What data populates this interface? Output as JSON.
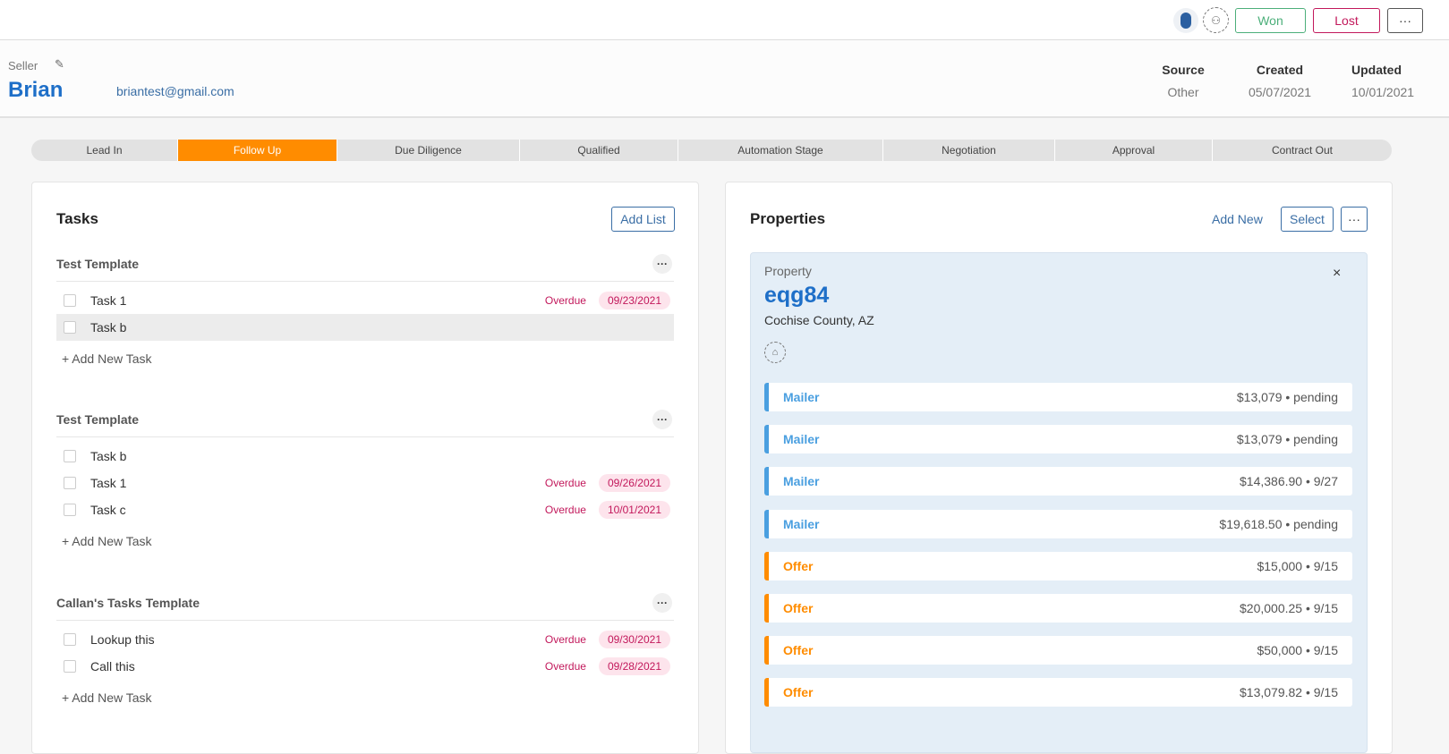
{
  "header": {
    "won": "Won",
    "lost": "Lost",
    "more": "···"
  },
  "seller": {
    "label": "Seller",
    "name": "Brian",
    "email": "briantest@gmail.com",
    "meta": [
      {
        "label": "Source",
        "value": "Other"
      },
      {
        "label": "Created",
        "value": "05/07/2021"
      },
      {
        "label": "Updated",
        "value": "10/01/2021"
      }
    ]
  },
  "stages": [
    {
      "label": "Lead In"
    },
    {
      "label": "Follow Up",
      "active": true
    },
    {
      "label": "Due Diligence"
    },
    {
      "label": "Qualified"
    },
    {
      "label": "Automation Stage"
    },
    {
      "label": "Negotiation"
    },
    {
      "label": "Approval"
    },
    {
      "label": "Contract Out"
    }
  ],
  "tasks": {
    "title": "Tasks",
    "add_list": "Add List",
    "add_task": "+ Add New Task",
    "groups": [
      {
        "title": "Test Template",
        "items": [
          {
            "name": "Task 1",
            "status": "Overdue",
            "date": "09/23/2021"
          },
          {
            "name": "Task b",
            "highlight": true
          }
        ]
      },
      {
        "title": "Test Template",
        "items": [
          {
            "name": "Task b"
          },
          {
            "name": "Task 1",
            "status": "Overdue",
            "date": "09/26/2021"
          },
          {
            "name": "Task c",
            "status": "Overdue",
            "date": "10/01/2021"
          }
        ]
      },
      {
        "title": "Callan's Tasks Template",
        "items": [
          {
            "name": "Lookup this",
            "status": "Overdue",
            "date": "09/30/2021"
          },
          {
            "name": "Call this",
            "status": "Overdue",
            "date": "09/28/2021"
          }
        ]
      }
    ]
  },
  "properties": {
    "title": "Properties",
    "add_new": "Add New",
    "select": "Select",
    "more": "···",
    "card": {
      "label": "Property",
      "name": "eqg84",
      "location": "Cochise County, AZ",
      "close": "×"
    },
    "rows": [
      {
        "type": "Mailer",
        "value": "$13,079 • pending"
      },
      {
        "type": "Mailer",
        "value": "$13,079 • pending"
      },
      {
        "type": "Mailer",
        "value": "$14,386.90 • 9/27"
      },
      {
        "type": "Mailer",
        "value": "$19,618.50 • pending"
      },
      {
        "type": "Offer",
        "value": "$15,000 • 9/15"
      },
      {
        "type": "Offer",
        "value": "$20,000.25 • 9/15"
      },
      {
        "type": "Offer",
        "value": "$50,000 • 9/15"
      },
      {
        "type": "Offer",
        "value": "$13,079.82 • 9/15"
      }
    ]
  },
  "colors": {
    "mailer": "#4a9fe0",
    "offer": "#ff8c00",
    "accent": "#1e6fc8",
    "won": "#4caf7a",
    "lost": "#c2185b"
  }
}
